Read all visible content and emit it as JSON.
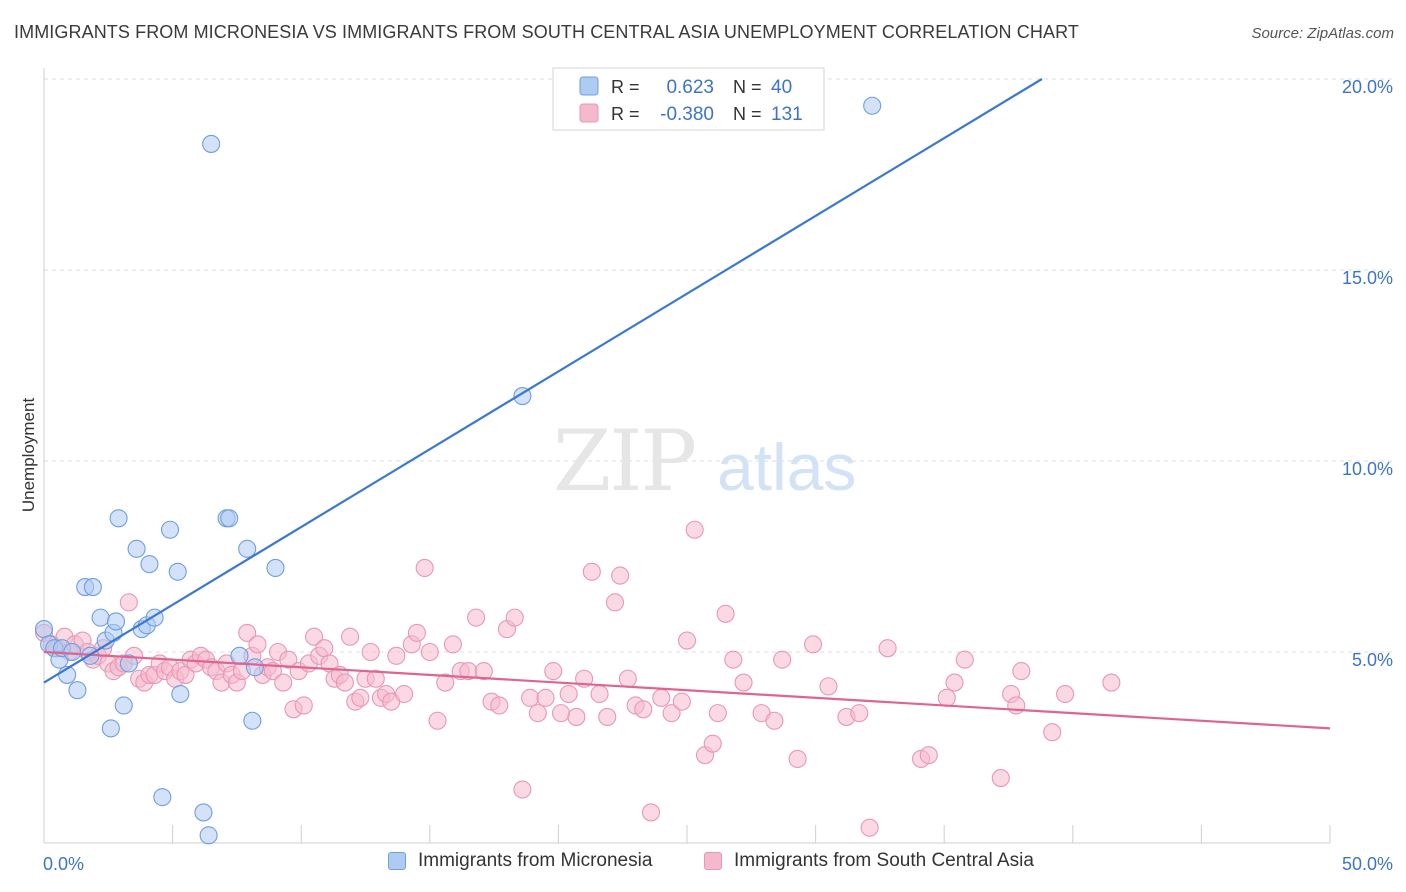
{
  "title": "IMMIGRANTS FROM MICRONESIA VS IMMIGRANTS FROM SOUTH CENTRAL ASIA UNEMPLOYMENT CORRELATION CHART",
  "source": "Source: ZipAtlas.com",
  "watermark": {
    "zip": "ZIP",
    "atlas": "atlas"
  },
  "colors": {
    "blue": "#3a78d4",
    "blue_fill": "#aecbf2",
    "pink": "#e0648f",
    "pink_fill": "#f5b9cd",
    "axis_text": "#3d74c9",
    "grid": "#dcdcdc"
  },
  "legend_top": {
    "rows": [
      {
        "r_label": "R =",
        "r_value": "0.623",
        "n_label": "N =",
        "n_value": "40"
      },
      {
        "r_label": "R =",
        "r_value": "-0.380",
        "n_label": "N =",
        "n_value": "131"
      }
    ]
  },
  "legend_bottom": {
    "items": [
      "Immigrants from Micronesia",
      "Immigrants from South Central Asia"
    ]
  },
  "chart_data": {
    "type": "scatter",
    "title": "IMMIGRANTS FROM MICRONESIA VS IMMIGRANTS FROM SOUTH CENTRAL ASIA UNEMPLOYMENT CORRELATION CHART",
    "xlabel": "",
    "ylabel": "Unemployment",
    "xlim": [
      0,
      50
    ],
    "ylim": [
      0,
      20.5
    ],
    "x_tick_labels": [
      "0.0%",
      "50.0%"
    ],
    "y_ticks": [
      5,
      10,
      15,
      20
    ],
    "y_tick_labels": [
      "5.0%",
      "10.0%",
      "15.0%",
      "20.0%"
    ],
    "grid": true,
    "legend_position": "top-center",
    "series": [
      {
        "name": "Immigrants from Micronesia",
        "color": "#3a78d4",
        "r": 0.623,
        "n": 40,
        "trend": {
          "x0": 0,
          "y0": 4.2,
          "x1": 38.8,
          "y1": 20.0
        },
        "points": [
          [
            0.0,
            5.6
          ],
          [
            0.2,
            5.2
          ],
          [
            0.4,
            5.1
          ],
          [
            0.6,
            4.8
          ],
          [
            0.7,
            5.1
          ],
          [
            0.9,
            4.4
          ],
          [
            1.1,
            5.0
          ],
          [
            1.3,
            4.0
          ],
          [
            1.6,
            6.7
          ],
          [
            1.8,
            4.9
          ],
          [
            1.9,
            6.7
          ],
          [
            2.2,
            5.9
          ],
          [
            2.4,
            5.3
          ],
          [
            2.6,
            3.0
          ],
          [
            2.7,
            5.5
          ],
          [
            2.8,
            5.8
          ],
          [
            2.9,
            8.5
          ],
          [
            3.1,
            3.6
          ],
          [
            3.3,
            4.7
          ],
          [
            3.6,
            7.7
          ],
          [
            3.8,
            5.6
          ],
          [
            4.0,
            5.7
          ],
          [
            4.1,
            7.3
          ],
          [
            4.3,
            5.9
          ],
          [
            4.6,
            1.2
          ],
          [
            4.9,
            8.2
          ],
          [
            5.2,
            7.1
          ],
          [
            5.3,
            3.9
          ],
          [
            6.2,
            0.8
          ],
          [
            6.4,
            0.2
          ],
          [
            6.5,
            18.3
          ],
          [
            7.1,
            8.5
          ],
          [
            7.2,
            8.5
          ],
          [
            7.6,
            4.9
          ],
          [
            7.9,
            7.7
          ],
          [
            8.1,
            3.2
          ],
          [
            8.2,
            4.6
          ],
          [
            9.0,
            7.2
          ],
          [
            18.6,
            11.7
          ],
          [
            32.2,
            19.3
          ]
        ]
      },
      {
        "name": "Immigrants from South Central Asia",
        "color": "#e0648f",
        "r": -0.38,
        "n": 131,
        "trend": {
          "x0": 0,
          "y0": 5.0,
          "x1": 50,
          "y1": 3.0
        },
        "points": [
          [
            0.0,
            5.5
          ],
          [
            0.3,
            5.2
          ],
          [
            0.5,
            5.1
          ],
          [
            0.8,
            5.4
          ],
          [
            1.0,
            5.0
          ],
          [
            1.2,
            5.2
          ],
          [
            1.5,
            5.3
          ],
          [
            1.7,
            5.0
          ],
          [
            1.9,
            4.8
          ],
          [
            2.1,
            4.9
          ],
          [
            2.3,
            5.1
          ],
          [
            2.5,
            4.7
          ],
          [
            2.7,
            4.5
          ],
          [
            2.9,
            4.6
          ],
          [
            3.1,
            4.7
          ],
          [
            3.3,
            6.3
          ],
          [
            3.5,
            4.9
          ],
          [
            3.7,
            4.3
          ],
          [
            3.9,
            4.2
          ],
          [
            4.1,
            4.4
          ],
          [
            4.3,
            4.4
          ],
          [
            4.5,
            4.7
          ],
          [
            4.7,
            4.5
          ],
          [
            4.9,
            4.6
          ],
          [
            5.1,
            4.3
          ],
          [
            5.3,
            4.5
          ],
          [
            5.5,
            4.4
          ],
          [
            5.7,
            4.8
          ],
          [
            5.9,
            4.7
          ],
          [
            6.1,
            4.9
          ],
          [
            6.3,
            4.8
          ],
          [
            6.5,
            4.6
          ],
          [
            6.7,
            4.5
          ],
          [
            6.9,
            4.2
          ],
          [
            7.1,
            4.7
          ],
          [
            7.3,
            4.4
          ],
          [
            7.5,
            4.2
          ],
          [
            7.7,
            4.5
          ],
          [
            7.9,
            5.5
          ],
          [
            8.1,
            4.9
          ],
          [
            8.3,
            5.2
          ],
          [
            8.5,
            4.4
          ],
          [
            8.7,
            4.6
          ],
          [
            8.9,
            4.5
          ],
          [
            9.1,
            5.0
          ],
          [
            9.3,
            4.2
          ],
          [
            9.5,
            4.8
          ],
          [
            9.7,
            3.5
          ],
          [
            9.9,
            4.5
          ],
          [
            10.1,
            3.6
          ],
          [
            10.3,
            4.7
          ],
          [
            10.5,
            5.4
          ],
          [
            10.7,
            4.9
          ],
          [
            10.9,
            5.1
          ],
          [
            11.1,
            4.7
          ],
          [
            11.3,
            4.3
          ],
          [
            11.5,
            4.4
          ],
          [
            11.7,
            4.2
          ],
          [
            11.9,
            5.4
          ],
          [
            12.1,
            3.7
          ],
          [
            12.3,
            3.8
          ],
          [
            12.5,
            4.3
          ],
          [
            12.7,
            5.0
          ],
          [
            12.9,
            4.3
          ],
          [
            13.1,
            3.8
          ],
          [
            13.3,
            3.9
          ],
          [
            13.5,
            3.7
          ],
          [
            13.7,
            4.9
          ],
          [
            14.0,
            3.9
          ],
          [
            14.3,
            5.2
          ],
          [
            14.5,
            5.5
          ],
          [
            14.8,
            7.2
          ],
          [
            15.0,
            5.0
          ],
          [
            15.3,
            3.2
          ],
          [
            15.6,
            4.2
          ],
          [
            15.9,
            5.2
          ],
          [
            16.2,
            4.5
          ],
          [
            16.5,
            4.5
          ],
          [
            16.8,
            5.9
          ],
          [
            17.1,
            4.5
          ],
          [
            17.4,
            3.7
          ],
          [
            17.7,
            3.6
          ],
          [
            18.0,
            5.6
          ],
          [
            18.3,
            5.9
          ],
          [
            18.6,
            1.4
          ],
          [
            18.9,
            3.8
          ],
          [
            19.2,
            3.4
          ],
          [
            19.5,
            3.8
          ],
          [
            19.8,
            4.5
          ],
          [
            20.1,
            3.4
          ],
          [
            20.4,
            3.9
          ],
          [
            20.7,
            3.3
          ],
          [
            21.0,
            4.3
          ],
          [
            21.3,
            7.1
          ],
          [
            21.6,
            3.9
          ],
          [
            21.9,
            3.3
          ],
          [
            22.2,
            6.3
          ],
          [
            22.4,
            7.0
          ],
          [
            22.7,
            4.3
          ],
          [
            23.0,
            3.6
          ],
          [
            23.3,
            3.5
          ],
          [
            23.6,
            0.8
          ],
          [
            24.0,
            3.8
          ],
          [
            24.4,
            3.4
          ],
          [
            24.8,
            3.7
          ],
          [
            25.0,
            5.3
          ],
          [
            25.3,
            8.2
          ],
          [
            25.7,
            2.3
          ],
          [
            26.0,
            2.6
          ],
          [
            26.2,
            3.4
          ],
          [
            26.5,
            6.0
          ],
          [
            27.2,
            4.2
          ],
          [
            27.9,
            3.4
          ],
          [
            28.4,
            3.2
          ],
          [
            26.8,
            4.8
          ],
          [
            28.7,
            4.8
          ],
          [
            29.3,
            2.2
          ],
          [
            29.9,
            5.2
          ],
          [
            30.5,
            4.1
          ],
          [
            31.2,
            3.3
          ],
          [
            31.7,
            3.4
          ],
          [
            32.1,
            0.4
          ],
          [
            32.8,
            5.1
          ],
          [
            34.1,
            2.2
          ],
          [
            34.4,
            2.3
          ],
          [
            35.1,
            3.8
          ],
          [
            35.4,
            4.2
          ],
          [
            35.8,
            4.8
          ],
          [
            37.2,
            1.7
          ],
          [
            37.6,
            3.9
          ],
          [
            37.8,
            3.6
          ],
          [
            38.0,
            4.5
          ],
          [
            39.2,
            2.9
          ],
          [
            39.7,
            3.9
          ],
          [
            41.5,
            4.2
          ]
        ]
      }
    ]
  }
}
